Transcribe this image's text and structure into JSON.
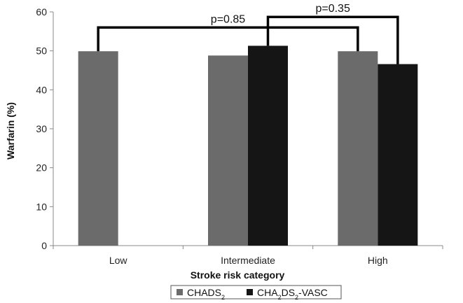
{
  "chart_data": {
    "type": "bar",
    "title": "",
    "xlabel": "Stroke risk category",
    "ylabel": "Warfarin (%)",
    "ylim": [
      0,
      60
    ],
    "yticks": [
      0,
      10,
      20,
      30,
      40,
      50,
      60
    ],
    "categories": [
      "Low",
      "Intermediate",
      "High"
    ],
    "series": [
      {
        "name": "CHADS2",
        "name_parts": [
          {
            "text": "CHADS"
          },
          {
            "text": "2",
            "sub": true
          }
        ],
        "color": "#6b6b6b",
        "values": [
          49.9,
          48.8,
          49.9
        ]
      },
      {
        "name": "CHA2DS2-VASC",
        "name_parts": [
          {
            "text": "CHA"
          },
          {
            "text": "2",
            "sub": true
          },
          {
            "text": "DS"
          },
          {
            "text": "2",
            "sub": true
          },
          {
            "text": "-VASC"
          }
        ],
        "color": "#151515",
        "values": [
          null,
          51.3,
          46.6
        ]
      }
    ],
    "annotations": [
      {
        "label": "p=0.85",
        "from": {
          "category": 0,
          "series": 0
        },
        "to": {
          "category": 2,
          "series": 0
        }
      },
      {
        "label": "p=0.35",
        "from": {
          "category": 1,
          "series": 1
        },
        "to": {
          "category": 2,
          "series": 1
        }
      }
    ],
    "legend_position": "bottom",
    "grid": false
  }
}
